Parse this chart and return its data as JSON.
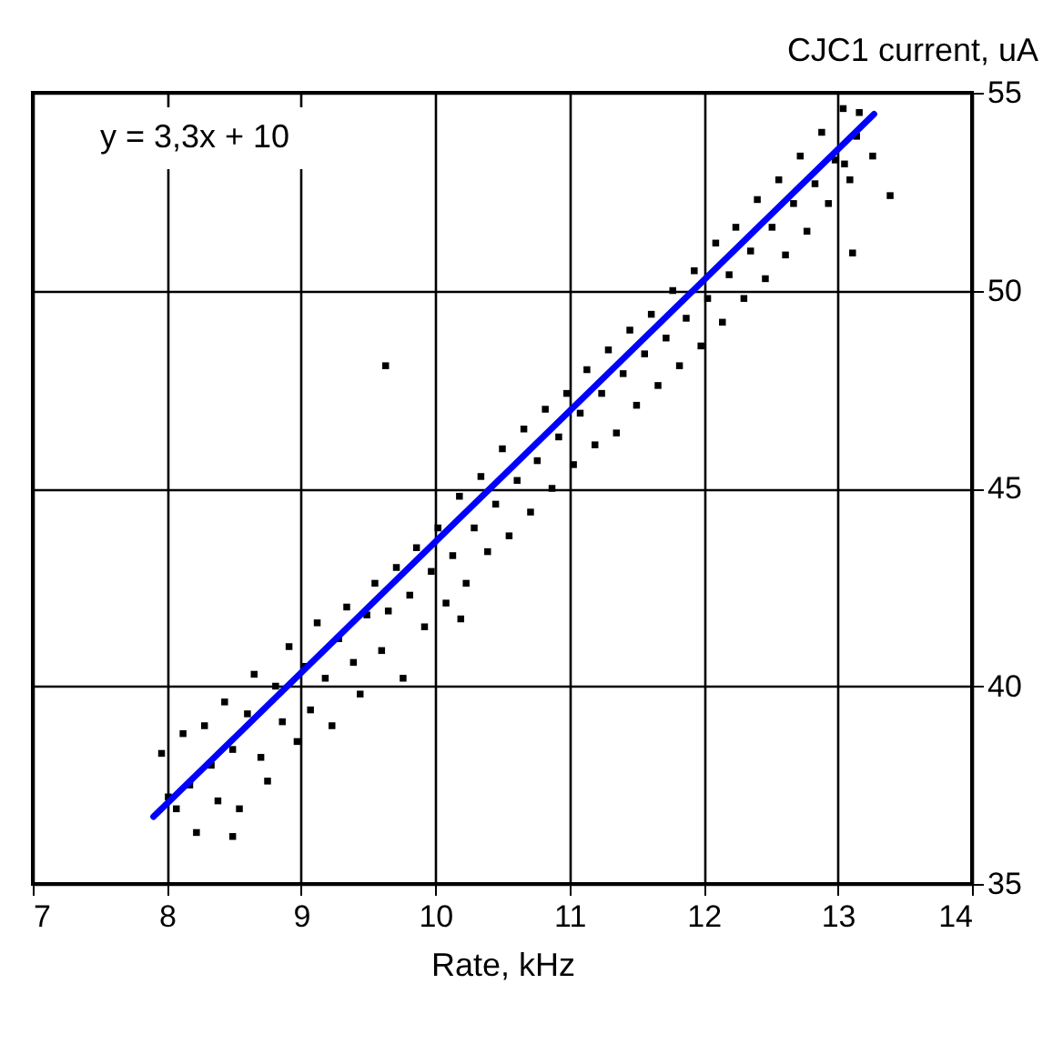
{
  "chart_data": {
    "type": "scatter",
    "xlabel": "Rate, kHz",
    "ylabel": "CJC1 current, uA",
    "annotations": [
      "y = 3,3x + 10"
    ],
    "xlim": [
      7,
      14
    ],
    "xticks": [
      7,
      8,
      9,
      10,
      11,
      12,
      13,
      14
    ],
    "ylim": [
      35,
      55
    ],
    "yticks": [
      35,
      40,
      45,
      50,
      55
    ],
    "grid": true,
    "series": [
      {
        "color": "#000000",
        "marker": "square",
        "x": [
          7.96,
          8.01,
          8.07,
          8.12,
          8.17,
          8.22,
          8.28,
          8.33,
          8.38,
          8.43,
          8.49,
          8.54,
          8.6,
          8.65,
          8.7,
          8.75,
          8.81,
          8.86,
          8.91,
          8.97,
          9.02,
          9.07,
          9.12,
          9.18,
          9.23,
          9.28,
          9.34,
          9.39,
          9.44,
          9.49,
          9.55,
          9.6,
          9.65,
          9.71,
          9.76,
          9.81,
          9.86,
          9.92,
          9.97,
          10.02,
          10.08,
          10.13,
          10.18,
          10.23,
          10.29,
          10.34,
          10.39,
          10.45,
          10.5,
          10.55,
          10.61,
          10.66,
          10.71,
          10.76,
          10.82,
          10.87,
          10.92,
          10.98,
          11.03,
          11.08,
          11.13,
          11.19,
          11.24,
          11.29,
          11.35,
          11.4,
          11.45,
          11.5,
          11.56,
          11.61,
          11.66,
          11.72,
          11.77,
          11.82,
          11.87,
          11.93,
          11.98,
          12.03,
          12.09,
          12.14,
          12.19,
          12.24,
          12.3,
          12.35,
          12.4,
          12.46,
          12.51,
          12.56,
          12.61,
          12.67,
          12.72,
          12.77,
          12.83,
          12.88,
          12.93,
          12.98,
          13.04,
          13.09,
          13.14,
          13.05,
          13.16,
          13.26,
          13.39,
          8.49,
          9.63,
          10.19,
          13.11
        ],
        "values": [
          38.3,
          37.2,
          36.9,
          38.8,
          37.5,
          36.3,
          39.0,
          38.0,
          37.1,
          39.6,
          38.4,
          36.9,
          39.3,
          40.3,
          38.2,
          37.6,
          40.0,
          39.1,
          41.0,
          38.6,
          40.5,
          39.4,
          41.6,
          40.2,
          39.0,
          41.2,
          42.0,
          40.6,
          39.8,
          41.8,
          42.6,
          40.9,
          41.9,
          43.0,
          40.2,
          42.3,
          43.5,
          41.5,
          42.9,
          44.0,
          42.1,
          43.3,
          44.8,
          42.6,
          44.0,
          45.3,
          43.4,
          44.6,
          46.0,
          43.8,
          45.2,
          46.5,
          44.4,
          45.7,
          47.0,
          45.0,
          46.3,
          47.4,
          45.6,
          46.9,
          48.0,
          46.1,
          47.4,
          48.5,
          46.4,
          47.9,
          49.0,
          47.1,
          48.4,
          49.4,
          47.6,
          48.8,
          50.0,
          48.1,
          49.3,
          50.5,
          48.6,
          49.8,
          51.2,
          49.2,
          50.4,
          51.6,
          49.8,
          51.0,
          52.3,
          50.3,
          51.6,
          52.8,
          50.9,
          52.2,
          53.4,
          51.5,
          52.7,
          54.0,
          52.2,
          53.3,
          54.6,
          52.8,
          53.9,
          53.2,
          54.5,
          53.4,
          52.4,
          36.2,
          48.1,
          41.7,
          50.95
        ]
      },
      {
        "type": "line",
        "color": "#0000ff",
        "x": [
          7.9,
          13.27
        ],
        "values": [
          36.7,
          54.46
        ]
      }
    ]
  }
}
